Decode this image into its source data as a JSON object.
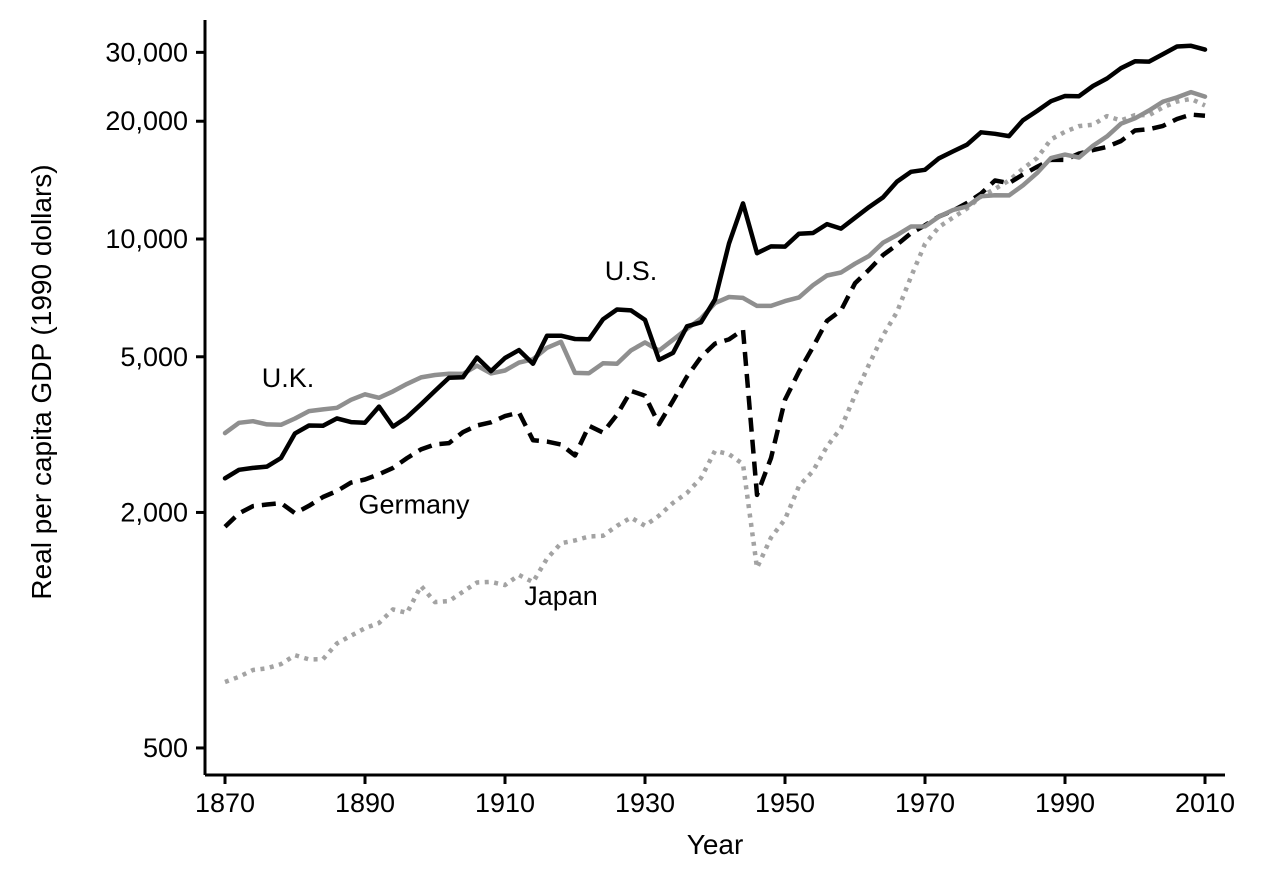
{
  "chart_data": {
    "type": "line",
    "title": "",
    "x_axis": {
      "label": "Year",
      "ticks": [
        1870,
        1890,
        1910,
        1930,
        1950,
        1970,
        1990,
        2010
      ],
      "range": [
        1870,
        2010
      ]
    },
    "y_axis": {
      "label": "Real per capita GDP (1990 dollars)",
      "scale": "log",
      "ticks": [
        {
          "value": 500,
          "label": "500"
        },
        {
          "value": 2000,
          "label": "2,000"
        },
        {
          "value": 5000,
          "label": "5,000"
        },
        {
          "value": 10000,
          "label": "10,000"
        },
        {
          "value": 20000,
          "label": "20,000"
        },
        {
          "value": 30000,
          "label": "30,000"
        }
      ],
      "range": [
        500,
        33000
      ]
    },
    "x": [
      1870,
      1872,
      1874,
      1876,
      1878,
      1880,
      1882,
      1884,
      1886,
      1888,
      1890,
      1892,
      1894,
      1896,
      1898,
      1900,
      1902,
      1904,
      1906,
      1908,
      1910,
      1912,
      1914,
      1916,
      1918,
      1920,
      1922,
      1924,
      1926,
      1928,
      1930,
      1932,
      1934,
      1936,
      1938,
      1940,
      1942,
      1944,
      1946,
      1948,
      1950,
      1952,
      1954,
      1956,
      1958,
      1960,
      1962,
      1964,
      1966,
      1968,
      1970,
      1972,
      1974,
      1976,
      1978,
      1980,
      1982,
      1984,
      1986,
      1988,
      1990,
      1992,
      1994,
      1996,
      1998,
      2000,
      2002,
      2004,
      2006,
      2008,
      2010
    ],
    "series": [
      {
        "name": "Japan",
        "color": "#a3a3a3",
        "style": "dotted",
        "values": [
          737,
          760,
          791,
          799,
          819,
          863,
          842,
          843,
          925,
          968,
          1012,
          1043,
          1130,
          1107,
          1298,
          1180,
          1187,
          1254,
          1324,
          1329,
          1304,
          1384,
          1327,
          1524,
          1668,
          1696,
          1736,
          1743,
          1849,
          1940,
          1850,
          1962,
          2115,
          2244,
          2449,
          2874,
          2818,
          2659,
          1444,
          1725,
          1921,
          2336,
          2553,
          2948,
          3290,
          3986,
          4778,
          5668,
          6506,
          8010,
          9714,
          10733,
          11344,
          11965,
          12841,
          13428,
          14113,
          15138,
          16096,
          17968,
          18789,
          19431,
          19592,
          20616,
          20084,
          20738,
          20724,
          21700,
          22462,
          22816,
          21935
        ]
      },
      {
        "name": "Germany",
        "color": "#000000",
        "style": "dashed",
        "values": [
          1839,
          1989,
          2076,
          2096,
          2113,
          1991,
          2080,
          2190,
          2269,
          2384,
          2428,
          2504,
          2600,
          2754,
          2898,
          2985,
          3008,
          3209,
          3337,
          3399,
          3527,
          3602,
          3059,
          3035,
          2983,
          2796,
          3331,
          3199,
          3555,
          4090,
          3973,
          3362,
          3858,
          4451,
          4994,
          5403,
          5538,
          5860,
          2217,
          2753,
          3881,
          4582,
          5297,
          6177,
          6570,
          7705,
          8343,
          9097,
          9669,
          10347,
          10839,
          11416,
          11811,
          12361,
          13067,
          14114,
          13896,
          14620,
          15287,
          15946,
          15929,
          16531,
          16877,
          17193,
          17799,
          18944,
          19080,
          19461,
          20270,
          20801,
          20661
        ]
      },
      {
        "name": "U.K.",
        "color": "#8f8f8f",
        "style": "solid",
        "values": [
          3190,
          3390,
          3422,
          3358,
          3351,
          3477,
          3631,
          3667,
          3703,
          3881,
          4009,
          3926,
          4079,
          4263,
          4428,
          4492,
          4525,
          4520,
          4745,
          4534,
          4611,
          4831,
          4927,
          5271,
          5459,
          4548,
          4538,
          4812,
          4798,
          5192,
          5441,
          5184,
          5525,
          5894,
          6266,
          6856,
          7108,
          7072,
          6745,
          6746,
          6939,
          7091,
          7619,
          8069,
          8211,
          8645,
          9047,
          9787,
          10230,
          10766,
          10767,
          11409,
          11859,
          12114,
          12858,
          12931,
          12924,
          13720,
          14742,
          16110,
          16430,
          16158,
          17316,
          18292,
          19707,
          20353,
          21310,
          22445,
          23013,
          23742,
          23123
        ]
      },
      {
        "name": "U.S.",
        "color": "#000000",
        "style": "solid",
        "values": [
          2445,
          2570,
          2600,
          2620,
          2755,
          3184,
          3336,
          3330,
          3478,
          3404,
          3392,
          3728,
          3314,
          3504,
          3780,
          4091,
          4421,
          4434,
          4978,
          4596,
          4964,
          5201,
          4799,
          5659,
          5659,
          5552,
          5540,
          6233,
          6602,
          6569,
          6213,
          4908,
          5114,
          5983,
          6126,
          7010,
          9741,
          12333,
          9197,
          9573,
          9561,
          10316,
          10359,
          10914,
          10631,
          11328,
          12065,
          12773,
          14017,
          14851,
          15030,
          16078,
          16744,
          17418,
          18740,
          18577,
          18325,
          20123,
          21236,
          22499,
          23201,
          23169,
          24603,
          25717,
          27331,
          28467,
          28402,
          29694,
          31049,
          31178,
          30491
        ]
      }
    ],
    "annotations": [
      {
        "label": "U.S.",
        "year": 1928,
        "value": 7850
      },
      {
        "label": "U.K.",
        "year": 1879,
        "value": 4180
      },
      {
        "label": "Germany",
        "year": 1897,
        "value": 1985
      },
      {
        "label": "Japan",
        "year": 1918,
        "value": 1160
      }
    ],
    "grid": false,
    "legend_position": "inline-labels"
  }
}
